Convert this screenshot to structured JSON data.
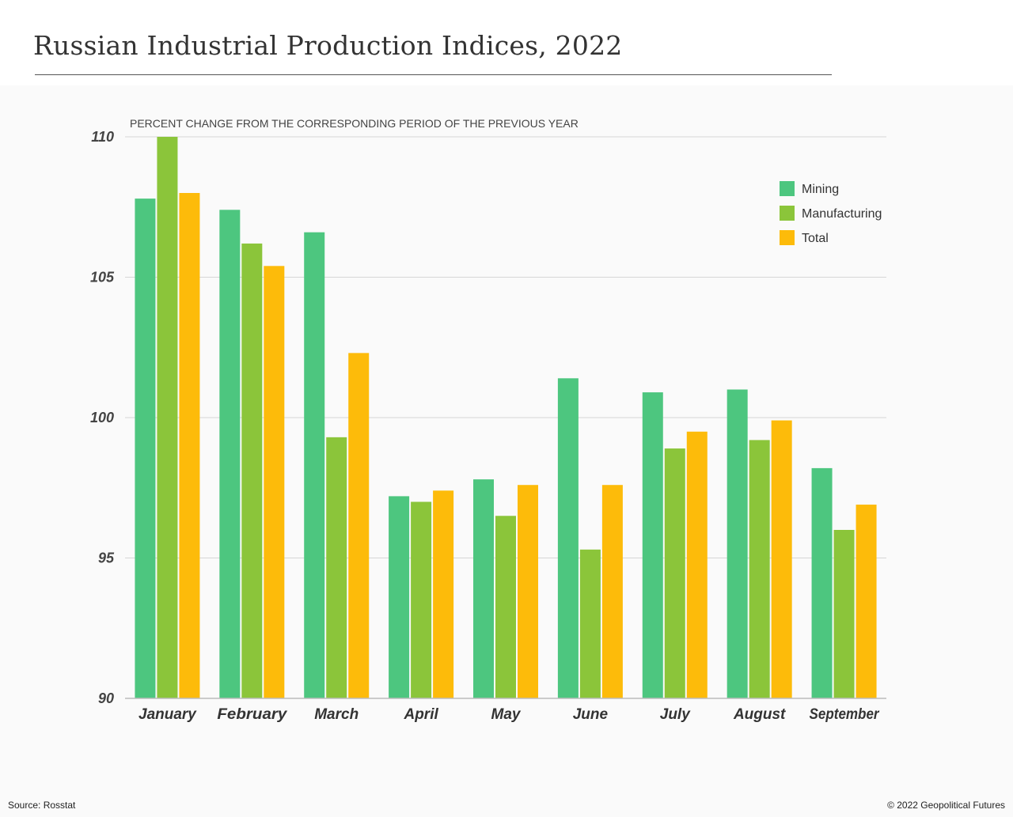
{
  "title": "Russian Industrial Production Indices, 2022",
  "footer": {
    "source": "Source: Rosstat",
    "copyright": "© 2022 Geopolitical Futures"
  },
  "chart_data": {
    "type": "bar",
    "title": "Russian Industrial Production Indices, 2022",
    "subtitle": "PERCENT CHANGE FROM THE CORRESPONDING PERIOD OF THE PREVIOUS YEAR",
    "xlabel": "",
    "ylabel": "",
    "ylim": [
      90,
      110
    ],
    "yticks": [
      90,
      95,
      100,
      105,
      110
    ],
    "grid": true,
    "legend_position": "top-right",
    "categories": [
      "January",
      "February",
      "March",
      "April",
      "May",
      "June",
      "July",
      "August",
      "September"
    ],
    "series": [
      {
        "name": "Mining",
        "color": "#4dc67f",
        "values": [
          107.8,
          107.4,
          106.6,
          97.2,
          97.8,
          101.4,
          100.9,
          101.0,
          98.2
        ]
      },
      {
        "name": "Manufacturing",
        "color": "#8bc53a",
        "values": [
          110.0,
          106.2,
          99.3,
          97.0,
          96.5,
          95.3,
          98.9,
          99.2,
          96.0
        ]
      },
      {
        "name": "Total",
        "color": "#fdbb0a",
        "values": [
          108.0,
          105.4,
          102.3,
          97.4,
          97.6,
          97.6,
          99.5,
          99.9,
          96.9
        ]
      }
    ]
  }
}
